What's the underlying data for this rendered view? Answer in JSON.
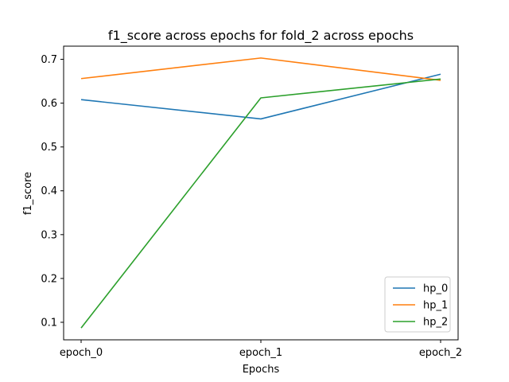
{
  "chart_data": {
    "type": "line",
    "title": "f1_score across epochs for fold_2 across epochs",
    "xlabel": "Epochs",
    "ylabel": "f1_score",
    "categories": [
      "epoch_0",
      "epoch_1",
      "epoch_2"
    ],
    "ylim": [
      0.06,
      0.73
    ],
    "yticks": [
      0.1,
      0.2,
      0.3,
      0.4,
      0.5,
      0.6,
      0.7
    ],
    "ytick_labels": [
      "0.1",
      "0.2",
      "0.3",
      "0.4",
      "0.5",
      "0.6",
      "0.7"
    ],
    "grid": false,
    "legend_position": "lower-right",
    "series": [
      {
        "name": "hp_0",
        "color": "#1f77b4",
        "values": [
          0.608,
          0.564,
          0.666
        ]
      },
      {
        "name": "hp_1",
        "color": "#ff7f0e",
        "values": [
          0.656,
          0.703,
          0.652
        ]
      },
      {
        "name": "hp_2",
        "color": "#2ca02c",
        "values": [
          0.087,
          0.612,
          0.655
        ]
      }
    ]
  }
}
